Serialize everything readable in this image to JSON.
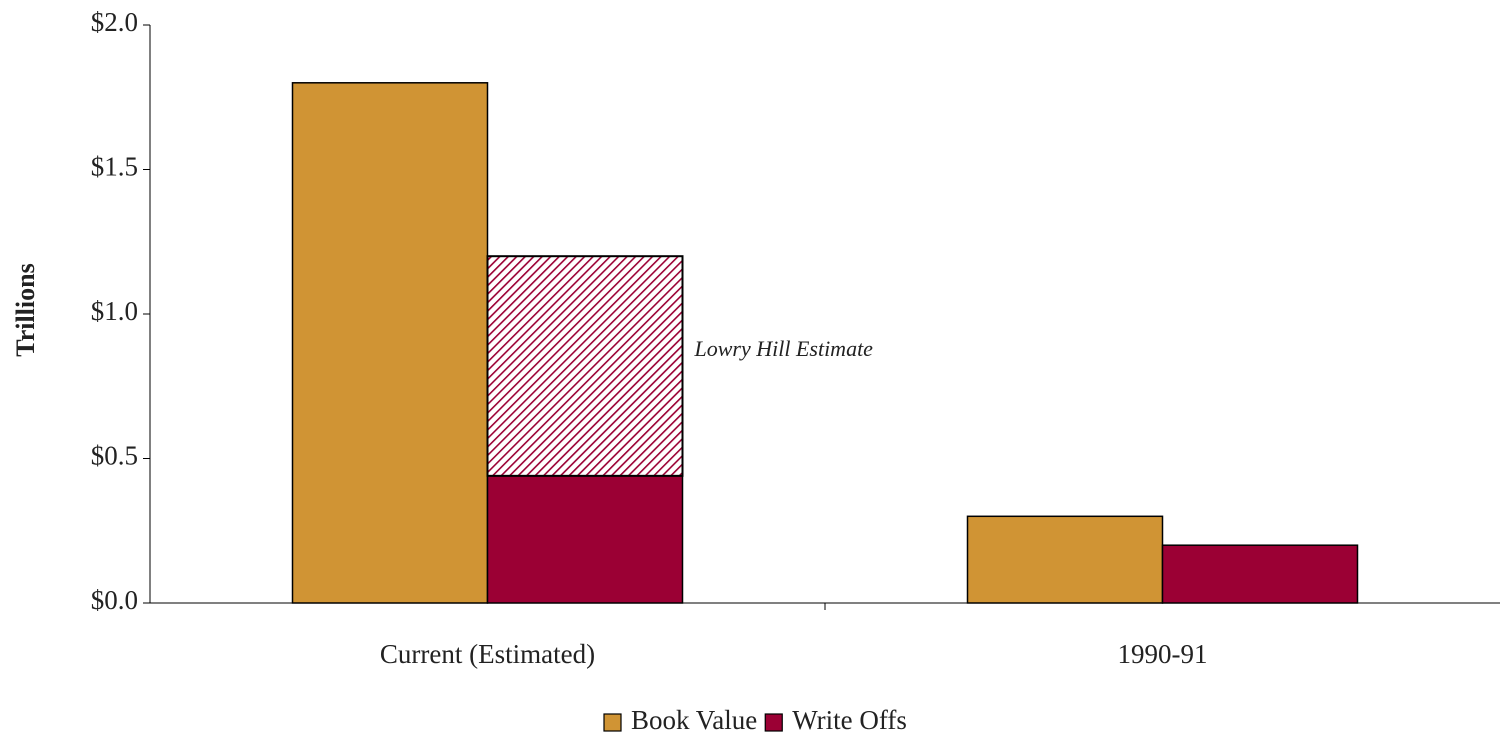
{
  "chart_data": {
    "type": "bar",
    "categories": [
      "Current (Estimated)",
      "1990-91"
    ],
    "series": [
      {
        "name": "Book Value",
        "color": "#d09434",
        "values": [
          1.8,
          0.3
        ]
      },
      {
        "name": "Write Offs",
        "color": "#9b0034",
        "values": [
          0.44,
          0.2
        ]
      }
    ],
    "estimate": {
      "label": "Lowry Hill Estimate",
      "stacked_on": "Write Offs",
      "color": "#9b0034",
      "values": [
        0.76,
        null
      ]
    },
    "ylabel": "Trillions",
    "ylim": [
      0,
      2
    ],
    "yticks": [
      {
        "value": 0,
        "label": "$0.0"
      },
      {
        "value": 0.5,
        "label": "$0.5"
      },
      {
        "value": 1,
        "label": "$1.0"
      },
      {
        "value": 1.5,
        "label": "$1.5"
      },
      {
        "value": 2,
        "label": "$2.0"
      }
    ],
    "legend": "bottom"
  }
}
